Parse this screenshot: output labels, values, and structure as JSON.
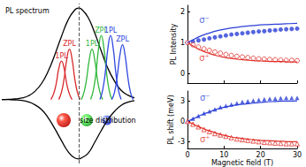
{
  "chart_data": [
    {
      "type": "line",
      "xlim": [
        0,
        100
      ],
      "ylim": [
        -0.7,
        1.05
      ],
      "tick_labels": false,
      "annotations": [
        "PL spectrum",
        "size distribution"
      ],
      "series": [
        {
          "type": "line",
          "color": "#000000",
          "x": [
            0,
            5,
            10,
            15,
            20,
            25,
            30,
            35,
            40,
            45,
            50,
            55,
            58,
            60,
            65,
            70,
            75,
            80,
            85,
            90,
            95,
            100
          ],
          "values": [
            0,
            0.002,
            0.006,
            0.016,
            0.04,
            0.089,
            0.175,
            0.31,
            0.49,
            0.69,
            0.87,
            0.98,
            1,
            0.99,
            0.9,
            0.73,
            0.53,
            0.34,
            0.2,
            0.1,
            0.048,
            0.02
          ]
        },
        {
          "type": "line",
          "color": "#000000",
          "x": [
            0,
            5,
            10,
            15,
            20,
            25,
            30,
            35,
            40,
            45,
            50,
            55,
            58,
            60,
            65,
            70,
            75,
            80,
            85,
            90,
            95,
            100
          ],
          "values": [
            0,
            -0.001,
            -0.004,
            -0.01,
            -0.026,
            -0.058,
            -0.11,
            -0.2,
            -0.32,
            -0.45,
            -0.57,
            -0.64,
            -0.65,
            -0.64,
            -0.59,
            -0.47,
            -0.34,
            -0.22,
            -0.13,
            -0.065,
            -0.03,
            -0.013
          ]
        },
        {
          "type": "line",
          "color": "#d8282a",
          "label": "1PL",
          "x": [
            37,
            39,
            41,
            43,
            45,
            47,
            49,
            51,
            53
          ],
          "values": [
            0,
            0.06,
            0.17,
            0.34,
            0.42,
            0.34,
            0.17,
            0.06,
            0
          ]
        },
        {
          "type": "line",
          "color": "#d8282a",
          "label": "ZPL",
          "x": [
            43,
            45,
            47,
            49,
            51,
            53,
            55,
            57,
            59
          ],
          "values": [
            0,
            0.08,
            0.23,
            0.44,
            0.55,
            0.44,
            0.23,
            0.08,
            0
          ]
        },
        {
          "type": "line",
          "color": "#2fb83a",
          "label": "1PL",
          "x": [
            60,
            62,
            64,
            66,
            68,
            70,
            72,
            74,
            76
          ],
          "values": [
            0,
            0.08,
            0.23,
            0.44,
            0.55,
            0.44,
            0.23,
            0.08,
            0
          ]
        },
        {
          "type": "line",
          "color": "#2fb83a",
          "label": "ZPL",
          "x": [
            67,
            69,
            71,
            73,
            75,
            77,
            79,
            81,
            83
          ],
          "values": [
            0,
            0.1,
            0.29,
            0.56,
            0.7,
            0.56,
            0.29,
            0.1,
            0
          ]
        },
        {
          "type": "line",
          "color": "#2f48e0",
          "label": "1PL",
          "x": [
            74,
            76,
            78,
            80,
            82,
            84,
            86,
            88,
            90
          ],
          "values": [
            0,
            0.1,
            0.29,
            0.56,
            0.7,
            0.56,
            0.29,
            0.1,
            0
          ]
        },
        {
          "type": "line",
          "color": "#2f48e0",
          "label": "ZPL",
          "x": [
            83,
            85,
            87,
            89,
            91,
            93,
            95,
            97,
            99
          ],
          "values": [
            0,
            0.08,
            0.25,
            0.48,
            0.6,
            0.48,
            0.25,
            0.08,
            0
          ]
        }
      ]
    },
    {
      "type": "scatter",
      "ylabel": "PL Intensity",
      "xlim": [
        0,
        30
      ],
      "ylim": [
        -0.3,
        2.2
      ],
      "xticks": [
        0,
        10,
        20,
        30
      ],
      "yticks": [
        0,
        1,
        2
      ],
      "tick_labels": "y",
      "annotations": [
        {
          "text": "σ⁻",
          "x": 4.6,
          "y": 1.73,
          "color": "#2a3fd6"
        },
        {
          "text": "σ⁺",
          "x": 4.6,
          "y": 0.5,
          "color": "#e0302a"
        }
      ],
      "series": [
        {
          "type": "scatter",
          "marker": "circle",
          "color": "#2a3fd6",
          "x": [
            0,
            1.5,
            3,
            4.5,
            6,
            7.5,
            9,
            10.5,
            12,
            13.5,
            15,
            16.5,
            18,
            19.5,
            21,
            22.5,
            24,
            25.5,
            27,
            28.5,
            30
          ],
          "values": [
            1.0,
            1.03,
            1.07,
            1.1,
            1.14,
            1.17,
            1.2,
            1.23,
            1.26,
            1.28,
            1.3,
            1.32,
            1.34,
            1.36,
            1.37,
            1.39,
            1.4,
            1.42,
            1.43,
            1.44,
            1.45
          ]
        },
        {
          "type": "scatter",
          "marker": "circle_open",
          "color": "#e0302a",
          "x": [
            0,
            1.5,
            3,
            4.5,
            6,
            7.5,
            9,
            10.5,
            12,
            13.5,
            15,
            16.5,
            18,
            19.5,
            21,
            22.5,
            24,
            25.5,
            27,
            28.5,
            30
          ],
          "values": [
            1.0,
            0.93,
            0.86,
            0.8,
            0.75,
            0.7,
            0.66,
            0.62,
            0.59,
            0.56,
            0.54,
            0.52,
            0.5,
            0.48,
            0.47,
            0.46,
            0.45,
            0.44,
            0.43,
            0.43,
            0.42
          ]
        },
        {
          "type": "line",
          "color": "#2a3fd6",
          "x": [
            0,
            2,
            4,
            6,
            8,
            10,
            12,
            14,
            16,
            18,
            20,
            22,
            24,
            26,
            28,
            30
          ],
          "values": [
            1.0,
            1.12,
            1.23,
            1.31,
            1.38,
            1.43,
            1.47,
            1.5,
            1.53,
            1.55,
            1.57,
            1.58,
            1.59,
            1.6,
            1.61,
            1.62
          ]
        },
        {
          "type": "line",
          "color": "#e0302a",
          "x": [
            0,
            2,
            4,
            6,
            8,
            10,
            12,
            14,
            16,
            18,
            20,
            22,
            24,
            26,
            28,
            30
          ],
          "values": [
            1.0,
            0.86,
            0.74,
            0.65,
            0.58,
            0.53,
            0.49,
            0.46,
            0.44,
            0.42,
            0.41,
            0.4,
            0.39,
            0.39,
            0.38,
            0.38
          ]
        }
      ]
    },
    {
      "type": "scatter",
      "xlabel": "Magnetic field (T)",
      "ylabel": "PL shift (meV)",
      "xlim": [
        0,
        30
      ],
      "ylim": [
        -4,
        4.5
      ],
      "xticks": [
        0,
        10,
        20,
        30
      ],
      "yticks": [
        -3,
        0,
        3
      ],
      "annotations": [
        {
          "text": "σ⁻",
          "x": 4.8,
          "y": 3.5,
          "color": "#2a3fd6"
        },
        {
          "text": "σ⁺",
          "x": 4.8,
          "y": -2.65,
          "color": "#e0302a"
        }
      ],
      "series": [
        {
          "type": "scatter",
          "marker": "triangle",
          "color": "#2a3fd6",
          "x": [
            0,
            1.5,
            3,
            4.5,
            6,
            7.5,
            9,
            10.5,
            12,
            13.5,
            15,
            16.5,
            18,
            19.5,
            21,
            22.5,
            24,
            25.5,
            27,
            28.5,
            30
          ],
          "values": [
            0,
            0.4,
            0.8,
            1.2,
            1.5,
            1.8,
            2.1,
            2.3,
            2.5,
            2.7,
            2.9,
            3.0,
            3.1,
            3.2,
            3.3,
            3.35,
            3.4,
            3.45,
            3.5,
            3.5,
            3.5
          ]
        },
        {
          "type": "scatter",
          "marker": "triangle_open",
          "color": "#e0302a",
          "x": [
            0,
            1.5,
            3,
            4.5,
            6,
            7.5,
            9,
            10.5,
            12,
            13.5,
            15,
            16.5,
            18,
            19.5,
            21,
            22.5,
            24,
            25.5,
            27,
            28.5,
            30
          ],
          "values": [
            0,
            -0.4,
            -0.8,
            -1.2,
            -1.5,
            -1.8,
            -2.0,
            -2.2,
            -2.4,
            -2.6,
            -2.7,
            -2.8,
            -2.9,
            -3.0,
            -3.1,
            -3.15,
            -3.2,
            -3.25,
            -3.3,
            -3.3,
            -3.3
          ]
        },
        {
          "type": "line",
          "color": "#2a3fd6",
          "x": [
            0,
            2,
            4,
            6,
            8,
            10,
            12,
            14,
            16,
            18,
            20,
            22,
            24,
            26,
            28,
            30
          ],
          "values": [
            0,
            0.5,
            1.0,
            1.4,
            1.8,
            2.1,
            2.3,
            2.5,
            2.6,
            2.7,
            2.8,
            2.9,
            2.95,
            3.0,
            3.0,
            3.05
          ]
        },
        {
          "type": "line",
          "color": "#e0302a",
          "x": [
            0,
            2,
            4,
            6,
            8,
            10,
            12,
            14,
            16,
            18,
            20,
            22,
            24,
            26,
            28,
            30
          ],
          "values": [
            0,
            -0.5,
            -1.0,
            -1.4,
            -1.75,
            -2.05,
            -2.3,
            -2.45,
            -2.6,
            -2.7,
            -2.8,
            -2.85,
            -2.9,
            -2.95,
            -3.0,
            -3.0
          ]
        }
      ]
    }
  ]
}
